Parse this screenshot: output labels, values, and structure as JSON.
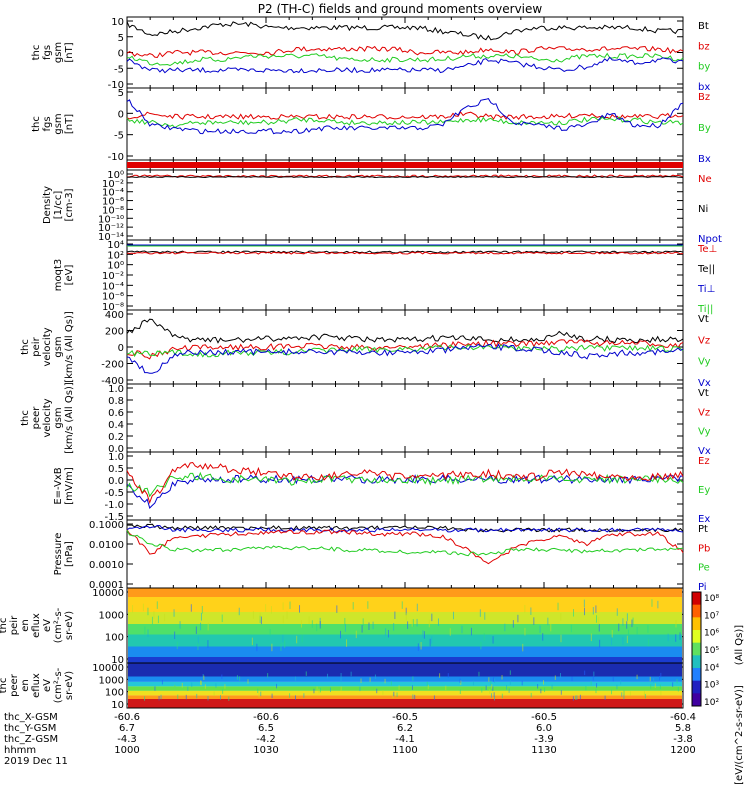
{
  "title": "P2 (TH-C) fields and ground moments overview",
  "colors": {
    "black": "#000000",
    "red": "#e00000",
    "green": "#22cc22",
    "blue": "#0000cc"
  },
  "panels": [
    {
      "id": "fgs",
      "ylabel": [
        "thc",
        "fgs",
        "gsm",
        "[nT]"
      ],
      "ylim": [
        -10,
        10
      ],
      "ticks": [
        "10",
        "5",
        "0",
        "-5",
        "-10"
      ],
      "legend": [
        "Bt",
        "bz",
        "by",
        "bx"
      ],
      "legend_colors": [
        "black",
        "red",
        "green",
        "blue"
      ]
    },
    {
      "id": "fgs2",
      "ylabel": [
        "thc",
        "fgs",
        "gsm",
        "[nT]"
      ],
      "ylim": [
        -15,
        10
      ],
      "ticks": [
        "5",
        "0",
        "-5",
        "-10"
      ],
      "legend": [
        "Bz",
        "By",
        "Bx"
      ],
      "legend_colors": [
        "red",
        "green",
        "blue"
      ]
    },
    {
      "id": "bar",
      "ylabel": [],
      "ticks": [],
      "legend": [],
      "legend_colors": []
    },
    {
      "id": "density",
      "ylabel": [
        "Density",
        "[1/cc]",
        "[cm-3]"
      ],
      "ticks": [
        "10⁰",
        "10⁻²",
        "10⁻⁴",
        "10⁻⁶",
        "10⁻⁸",
        "10⁻¹⁰",
        "10⁻¹²",
        "10⁻¹⁴"
      ],
      "legend": [
        "Ne",
        "Ni",
        "Npot"
      ],
      "legend_colors": [
        "red",
        "black",
        "blue"
      ]
    },
    {
      "id": "temp",
      "ylabel": [
        "moqt3",
        "[eV]"
      ],
      "ticks": [
        "10⁴",
        "10²",
        "10⁰",
        "10⁻²",
        "10⁻⁴",
        "10⁻⁶",
        "10⁻⁸"
      ],
      "legend": [
        "Te⊥",
        "Te||",
        "Ti⊥",
        "Ti||"
      ],
      "legend_colors": [
        "red",
        "black",
        "blue",
        "green"
      ]
    },
    {
      "id": "peir_v",
      "ylabel": [
        "thc",
        "peir",
        "velocity",
        "gsm",
        "[km/s (All Qs)]"
      ],
      "ylim": [
        -400,
        400
      ],
      "ticks": [
        "400",
        "200",
        "0",
        "-200",
        "-400"
      ],
      "legend": [
        "Vt",
        "Vz",
        "Vy",
        "Vx"
      ],
      "legend_colors": [
        "black",
        "red",
        "green",
        "blue"
      ]
    },
    {
      "id": "peer_v",
      "ylabel": [
        "thc",
        "peer",
        "velocity",
        "gsm",
        "[km/s (All Qs)]"
      ],
      "ylim": [
        0,
        1
      ],
      "ticks": [
        "1.0",
        "0.8",
        "0.6",
        "0.4",
        "0.2",
        "0.0"
      ],
      "legend": [
        "Vt",
        "Vz",
        "Vy",
        "Vx"
      ],
      "legend_colors": [
        "black",
        "red",
        "green",
        "blue"
      ]
    },
    {
      "id": "efield",
      "ylabel": [
        "E=-VxB",
        "[mV/m]"
      ],
      "ylim": [
        -1.5,
        1.0
      ],
      "ticks": [
        "1.0",
        "0.5",
        "0.0",
        "-0.5",
        "-1.0",
        "-1.5"
      ],
      "legend": [
        "Ez",
        "Ey",
        "Ex"
      ],
      "legend_colors": [
        "red",
        "green",
        "blue"
      ]
    },
    {
      "id": "pressure",
      "ylabel": [
        "Pressure",
        "[nPa]"
      ],
      "ticks": [
        "0.1000",
        "0.0100",
        "0.0010",
        "0.0001"
      ],
      "legend": [
        "Pt",
        "Pb",
        "Pe",
        "Pi"
      ],
      "legend_colors": [
        "black",
        "red",
        "green",
        "blue"
      ]
    },
    {
      "id": "peir_flux",
      "ylabel": [
        "thc",
        "peir",
        "en",
        "eflux",
        "eV",
        "(cm²-s-",
        "sr-eV)"
      ],
      "ticks": [
        "10000",
        "1000",
        "100",
        "10"
      ],
      "legend": [],
      "legend_colors": []
    },
    {
      "id": "peer_flux",
      "ylabel": [
        "thc",
        "peer",
        "en",
        "eflux",
        "eV",
        "(cm²-s-",
        "sr-eV)"
      ],
      "ticks": [
        "10000",
        "1000",
        "100",
        "10"
      ],
      "legend": [],
      "legend_colors": []
    }
  ],
  "colorbar": {
    "ticks": [
      "10⁸",
      "10⁷",
      "10⁶",
      "10⁵",
      "10⁴",
      "10³",
      "10²"
    ],
    "label_top": "(All Qs)]",
    "label_bottom": "[eV/(cm^2-s-sr-eV)]"
  },
  "footer": {
    "rows": [
      {
        "label": "thc_X-GSM",
        "values": [
          "-60.6",
          "-60.6",
          "-60.5",
          "-60.5",
          "-60.4"
        ]
      },
      {
        "label": "thc_Y-GSM",
        "values": [
          "6.7",
          "6.5",
          "6.2",
          "6.0",
          "5.8"
        ]
      },
      {
        "label": "thc_Z-GSM",
        "values": [
          "-4.3",
          "-4.2",
          "-4.1",
          "-3.9",
          "-3.8"
        ]
      },
      {
        "label": "hhmm",
        "values": [
          "1000",
          "1030",
          "1100",
          "1130",
          "1200"
        ]
      }
    ],
    "date": "2019 Dec 11"
  },
  "chart_data": {
    "type": "line",
    "title": "P2 (TH-C) fields and ground moments overview",
    "x_ticks": [
      "1000",
      "1030",
      "1100",
      "1130",
      "1200"
    ],
    "xlim": [
      "10:00",
      "12:00"
    ],
    "panels": [
      {
        "name": "thc fgs gsm [nT]",
        "ylim": [
          -10,
          10
        ],
        "series": [
          {
            "name": "Bt",
            "values": [
              8,
              6,
              6,
              6,
              6,
              6,
              6,
              7,
              7,
              7,
              7,
              7,
              7,
              7,
              6,
              5,
              5,
              6,
              7,
              7,
              7,
              7,
              7,
              7,
              6
            ]
          },
          {
            "name": "bz",
            "values": [
              0,
              0,
              1,
              0,
              0,
              0,
              1,
              1,
              0,
              1,
              1,
              1,
              1,
              0,
              0,
              1,
              1,
              1,
              0,
              0,
              1,
              1,
              1,
              1,
              1
            ]
          },
          {
            "name": "by",
            "values": [
              -1,
              -3,
              -2,
              -2,
              -1,
              -1,
              -1,
              -1,
              -1,
              -2,
              -2,
              -2,
              -3,
              -2,
              -2,
              -1,
              -1,
              -2,
              -2,
              -2,
              -1,
              -1,
              -1,
              -1,
              -1
            ]
          },
          {
            "name": "bx",
            "values": [
              -2,
              -5,
              -4,
              -5,
              -5,
              -5,
              -5,
              -5,
              -5,
              -5,
              -5,
              -5,
              -5,
              -5,
              -4,
              -2,
              -3,
              -4,
              -5,
              -4,
              -2,
              -3,
              -2,
              -2,
              -2
            ]
          }
        ]
      },
      {
        "name": "thc fgs gsm [nT] 2",
        "ylim": [
          -15,
          10
        ],
        "series": [
          {
            "name": "Bz",
            "values": [
              0,
              0,
              0,
              0,
              0,
              0,
              0,
              0,
              0,
              0,
              0,
              0,
              0,
              0,
              0,
              0,
              0,
              0,
              0,
              0,
              0,
              0,
              0,
              0,
              0
            ]
          },
          {
            "name": "By",
            "values": [
              -2,
              -2,
              -2,
              -2,
              -2,
              -2,
              -2,
              -2,
              -2,
              -2,
              -2,
              -2,
              -2,
              -2,
              -2,
              -2,
              -2,
              -2,
              -2,
              -2,
              -2,
              -2,
              -2,
              -2,
              -2
            ]
          },
          {
            "name": "Bx",
            "values": [
              5,
              -3,
              -4,
              -4,
              -4,
              -4,
              -4,
              -4,
              -4,
              -4,
              -4,
              -4,
              -4,
              -4,
              3,
              5,
              -2,
              -3,
              -4,
              -3,
              1,
              -2,
              -3,
              3,
              5
            ]
          }
        ]
      }
    ]
  }
}
